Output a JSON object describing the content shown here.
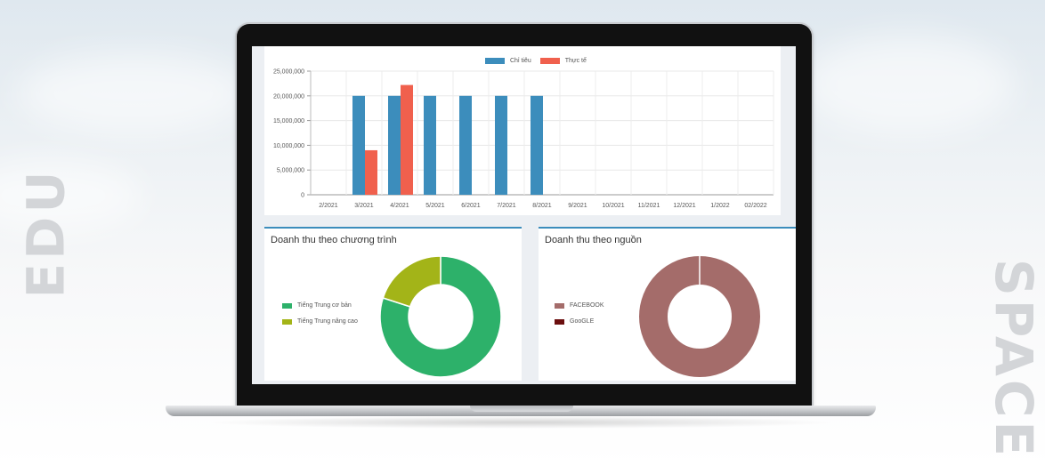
{
  "decor": {
    "left_text": "EDU",
    "right_text": "SPACE"
  },
  "bar_chart": {
    "legend": [
      {
        "label": "Chỉ tiêu",
        "color": "#3c8dbc"
      },
      {
        "label": "Thực tế",
        "color": "#f0604d"
      }
    ]
  },
  "revenue_by_program": {
    "title": "Doanh thu theo chương trình"
  },
  "revenue_by_source": {
    "title": "Doanh thu theo nguồn"
  },
  "chart_data": [
    {
      "type": "bar",
      "categories": [
        "2/2021",
        "3/2021",
        "4/2021",
        "5/2021",
        "6/2021",
        "7/2021",
        "8/2021",
        "9/2021",
        "10/2021",
        "11/2021",
        "12/2021",
        "1/2022",
        "02/2022"
      ],
      "series": [
        {
          "name": "Chỉ tiêu",
          "color": "#3c8dbc",
          "values": [
            0,
            20000000,
            20000000,
            20000000,
            20000000,
            20000000,
            20000000,
            0,
            0,
            0,
            0,
            0,
            0
          ]
        },
        {
          "name": "Thực tế",
          "color": "#f0604d",
          "values": [
            0,
            9000000,
            22200000,
            0,
            0,
            0,
            0,
            0,
            0,
            0,
            0,
            0,
            0
          ]
        }
      ],
      "yticks": [
        "0",
        "5,000,000",
        "10,000,000",
        "15,000,000",
        "20,000,000",
        "25,000,000"
      ],
      "ylim": [
        0,
        25000000
      ],
      "grid": true,
      "legend_position": "top"
    },
    {
      "type": "pie",
      "title": "Doanh thu theo chương trình",
      "labels": [
        "Tiếng Trung cơ bản",
        "Tiếng Trung nâng cao"
      ],
      "values": [
        80,
        20
      ],
      "colors": [
        "#2db16a",
        "#a3b418"
      ],
      "donut": true,
      "legend_position": "left"
    },
    {
      "type": "pie",
      "title": "Doanh thu theo nguồn",
      "labels": [
        "FACEBOOK",
        "GooGLE"
      ],
      "values": [
        100,
        0
      ],
      "colors": [
        "#a46c6a",
        "#6b0f0f"
      ],
      "donut": true,
      "legend_position": "left"
    }
  ]
}
